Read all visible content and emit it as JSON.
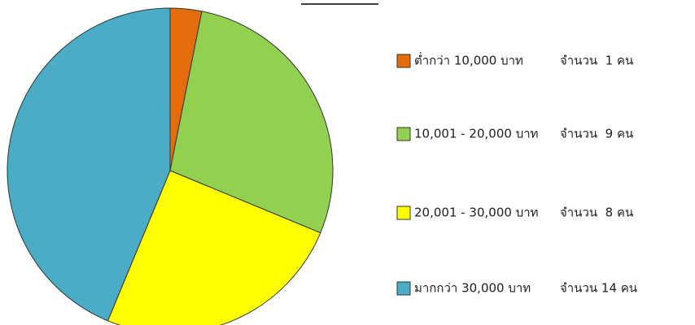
{
  "chart_data": {
    "type": "pie",
    "categories": [
      "ต่ำกว่า 10,000 บาท",
      "10,001 - 20,000 บาท",
      "20,001 - 30,000 บาท",
      "มากกว่า 30,000 บาท"
    ],
    "values": [
      1,
      9,
      8,
      14
    ],
    "value_labels": [
      "จำนวน  1 คน",
      "จำนวน  9 คน",
      "จำนวน  8 คน",
      "จำนวน 14 คน"
    ],
    "colors": [
      "#e46c0a",
      "#92d050",
      "#ffff00",
      "#4bacc6"
    ],
    "legend": "right"
  }
}
